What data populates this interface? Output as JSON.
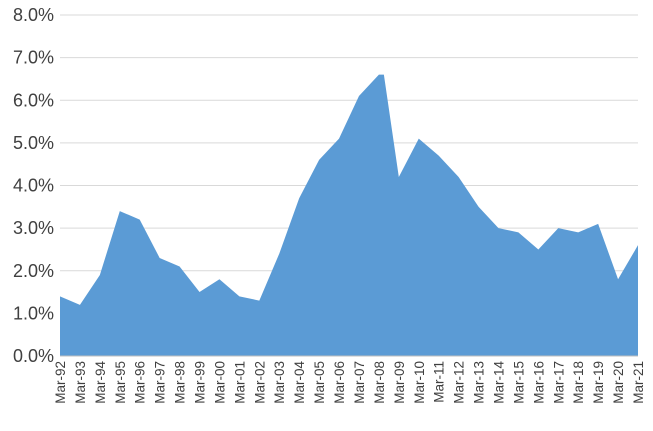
{
  "chart_data": {
    "type": "area",
    "title": "",
    "xlabel": "",
    "ylabel": "",
    "ylim": [
      0,
      8
    ],
    "grid": true,
    "legend": "none",
    "y_ticks": [
      "0.0%",
      "1.0%",
      "2.0%",
      "3.0%",
      "4.0%",
      "5.0%",
      "6.0%",
      "7.0%",
      "8.0%"
    ],
    "x_ticks": [
      "Mar-92",
      "Mar-93",
      "Mar-94",
      "Mar-95",
      "Mar-96",
      "Mar-97",
      "Mar-98",
      "Mar-99",
      "Mar-00",
      "Mar-01",
      "Mar-02",
      "Mar-03",
      "Mar-04",
      "Mar-05",
      "Mar-06",
      "Mar-07",
      "Mar-08",
      "Mar-09",
      "Mar-10",
      "Mar-11",
      "Mar-12",
      "Mar-13",
      "Mar-14",
      "Mar-15",
      "Mar-16",
      "Mar-17",
      "Mar-18",
      "Mar-19",
      "Mar-20",
      "Mar-21"
    ],
    "series": [
      {
        "color": "#5b9bd5",
        "x": [
          1992.0,
          1993.0,
          1994.0,
          1995.0,
          1996.0,
          1997.0,
          1998.0,
          1999.0,
          2000.0,
          2001.0,
          2002.0,
          2003.0,
          2004.0,
          2005.0,
          2006.0,
          2007.0,
          2008.0,
          2008.25,
          2009.0,
          2010.0,
          2011.0,
          2012.0,
          2013.0,
          2014.0,
          2015.0,
          2016.0,
          2017.0,
          2018.0,
          2019.0,
          2020.0,
          2021.0
        ],
        "values": [
          1.4,
          1.2,
          1.9,
          3.4,
          3.2,
          2.3,
          2.1,
          1.5,
          1.8,
          1.4,
          1.3,
          2.4,
          3.7,
          4.6,
          5.1,
          6.1,
          6.6,
          6.6,
          4.2,
          5.1,
          4.7,
          4.2,
          3.5,
          3.0,
          2.9,
          2.5,
          3.0,
          2.9,
          3.1,
          1.8,
          2.6
        ]
      }
    ]
  }
}
